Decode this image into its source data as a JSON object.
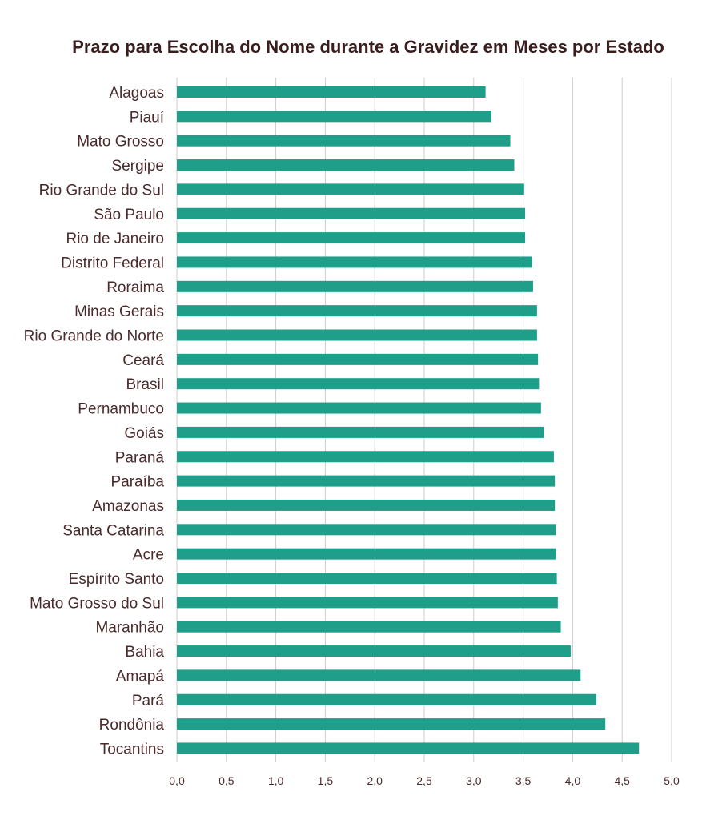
{
  "chart_data": {
    "type": "bar",
    "orientation": "horizontal",
    "title": "Prazo para Escolha do Nome durante a Gravidez em Meses por Estado",
    "xlabel": "",
    "ylabel": "",
    "xlim": [
      0,
      5
    ],
    "x_ticks": [
      "0,0",
      "0,5",
      "1,0",
      "1,5",
      "2,0",
      "2,5",
      "3,0",
      "3,5",
      "4,0",
      "4,5",
      "5,0"
    ],
    "grid": "vertical",
    "bar_color": "#1f9e89",
    "categories": [
      "Alagoas",
      "Piauí",
      "Mato Grosso",
      "Sergipe",
      "Rio Grande do Sul",
      "São Paulo",
      "Rio de Janeiro",
      "Distrito Federal",
      "Roraima",
      "Minas Gerais",
      "Rio Grande do Norte",
      "Ceará",
      "Brasil",
      "Pernambuco",
      "Goiás",
      "Paraná",
      "Paraíba",
      "Amazonas",
      "Santa Catarina",
      "Acre",
      "Espírito Santo",
      "Mato Grosso do Sul",
      "Maranhão",
      "Bahia",
      "Amapá",
      "Pará",
      "Rondônia",
      "Tocantins"
    ],
    "values": [
      3.12,
      3.18,
      3.37,
      3.41,
      3.51,
      3.52,
      3.52,
      3.59,
      3.6,
      3.64,
      3.64,
      3.65,
      3.66,
      3.68,
      3.71,
      3.81,
      3.82,
      3.82,
      3.83,
      3.83,
      3.84,
      3.85,
      3.88,
      3.98,
      4.08,
      4.24,
      4.33,
      4.67
    ]
  }
}
